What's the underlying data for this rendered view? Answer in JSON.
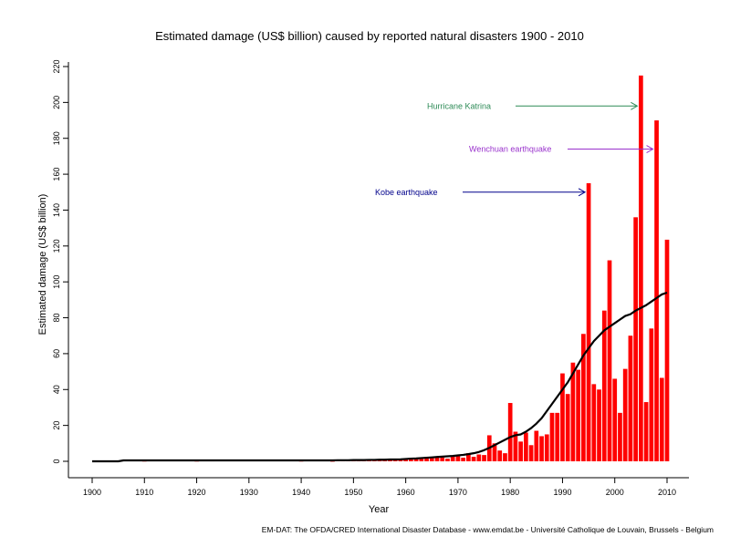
{
  "chart_data": {
    "type": "bar",
    "title": "Estimated damage (US$ billion) caused by reported natural disasters 1900 - 2010",
    "xlabel": "Year",
    "ylabel": "Estimated damage (US$ billion)",
    "ylim": [
      0,
      220
    ],
    "xlim": [
      1900,
      2010
    ],
    "yticks": [
      0,
      20,
      40,
      60,
      80,
      100,
      120,
      140,
      160,
      180,
      200,
      220
    ],
    "xticks": [
      1900,
      1910,
      1920,
      1930,
      1940,
      1950,
      1960,
      1970,
      1980,
      1990,
      2000,
      2010
    ],
    "grid": false,
    "bar_color": "#ff0000",
    "trend_color": "#000000",
    "years": [
      1900,
      1901,
      1902,
      1903,
      1904,
      1905,
      1906,
      1907,
      1908,
      1909,
      1910,
      1911,
      1912,
      1913,
      1914,
      1915,
      1916,
      1917,
      1918,
      1919,
      1920,
      1921,
      1922,
      1923,
      1924,
      1925,
      1926,
      1927,
      1928,
      1929,
      1930,
      1931,
      1932,
      1933,
      1934,
      1935,
      1936,
      1937,
      1938,
      1939,
      1940,
      1941,
      1942,
      1943,
      1944,
      1945,
      1946,
      1947,
      1948,
      1949,
      1950,
      1951,
      1952,
      1953,
      1954,
      1955,
      1956,
      1957,
      1958,
      1959,
      1960,
      1961,
      1962,
      1963,
      1964,
      1965,
      1966,
      1967,
      1968,
      1969,
      1970,
      1971,
      1972,
      1973,
      1974,
      1975,
      1976,
      1977,
      1978,
      1979,
      1980,
      1981,
      1982,
      1983,
      1984,
      1985,
      1986,
      1987,
      1988,
      1989,
      1990,
      1991,
      1992,
      1993,
      1994,
      1995,
      1996,
      1997,
      1998,
      1999,
      2000,
      2001,
      2002,
      2003,
      2004,
      2005,
      2006,
      2007,
      2008,
      2009,
      2010
    ],
    "series": [
      {
        "values": [
          0,
          0,
          0,
          0,
          0,
          0,
          0.5,
          0,
          0,
          0,
          0.2,
          0,
          0,
          0,
          0,
          0,
          0,
          0,
          0,
          0,
          0.2,
          0,
          0,
          0.3,
          0,
          0,
          0,
          0,
          0,
          0,
          0,
          1,
          0,
          0,
          0,
          0,
          0,
          0,
          0,
          0,
          0.2,
          0,
          0,
          0,
          0,
          0,
          0.1,
          0.8,
          0.5,
          0.6,
          0.6,
          0.8,
          0.5,
          0.8,
          0.6,
          0.9,
          0.7,
          0.6,
          1,
          0.9,
          1.2,
          1.3,
          2,
          1.5,
          2,
          2.2,
          2.5,
          2,
          1.5,
          3,
          3.2,
          2,
          4.5,
          2.5,
          3.8,
          3.5,
          14.5,
          10,
          6,
          4.5,
          32.5,
          16.5,
          11,
          16,
          9,
          17,
          14,
          15,
          27,
          27,
          49,
          37.5,
          55,
          51,
          71,
          155,
          43,
          40,
          84,
          112,
          46,
          27,
          51.5,
          70,
          136,
          215,
          33,
          74,
          190,
          46.5,
          123.5
        ]
      },
      {
        "values": [
          0,
          0,
          0,
          0,
          0,
          0,
          0.5,
          0.5,
          0.5,
          0.5,
          0.5,
          0.5,
          0.5,
          0.5,
          0.5,
          0.5,
          0.5,
          0.5,
          0.5,
          0.5,
          0.5,
          0.5,
          0.5,
          0.5,
          0.5,
          0.5,
          0.5,
          0.5,
          0.5,
          0.5,
          0.5,
          0.5,
          0.5,
          0.5,
          0.5,
          0.5,
          0.5,
          0.5,
          0.5,
          0.5,
          0.5,
          0.5,
          0.5,
          0.5,
          0.5,
          0.5,
          0.5,
          0.6,
          0.6,
          0.6,
          0.7,
          0.7,
          0.7,
          0.8,
          0.8,
          0.9,
          0.9,
          1.0,
          1.0,
          1.1,
          1.3,
          1.5,
          1.6,
          1.8,
          2.0,
          2.2,
          2.4,
          2.6,
          2.8,
          3.0,
          3.3,
          3.6,
          4.0,
          4.5,
          5.2,
          6.2,
          7.5,
          9.0,
          10.5,
          12,
          13.5,
          14.5,
          15,
          16.5,
          18.5,
          21,
          24,
          28,
          32,
          36,
          40,
          44,
          49,
          54,
          59,
          63,
          67,
          70,
          73,
          75,
          77,
          79,
          81,
          82,
          84,
          85.5,
          87,
          89,
          91,
          93,
          94
        ]
      }
    ],
    "annotations": [
      {
        "text": "Hurricane Katrina",
        "color": "#2e8b57",
        "year": 2005,
        "value": 198
      },
      {
        "text": "Wenchuan earthquake",
        "color": "#9932cc",
        "year": 2008,
        "value": 174
      },
      {
        "text": "Kobe earthquake",
        "color": "#00008b",
        "year": 1995,
        "value": 150
      }
    ],
    "source_note": "EM-DAT: The OFDA/CRED International Disaster Database - www.emdat.be - Université Catholique de Louvain, Brussels - Belgium"
  }
}
